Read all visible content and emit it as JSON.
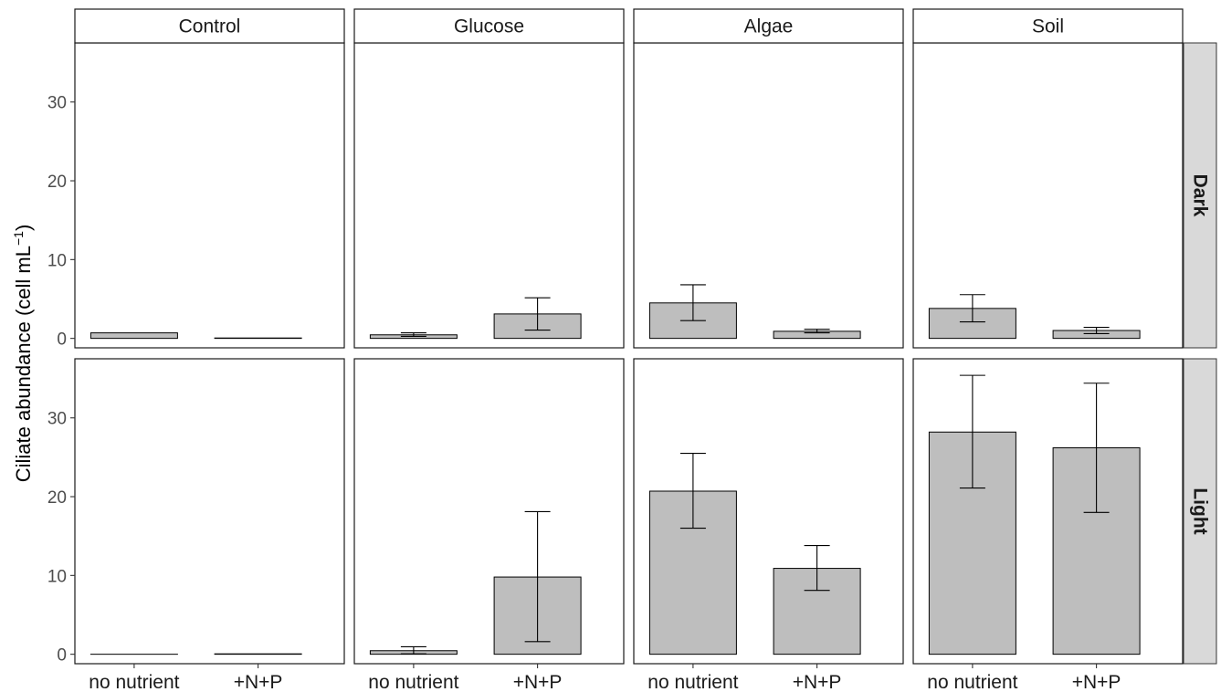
{
  "chart_data": {
    "type": "bar",
    "ylabel": "Ciliate abundance (cell mL",
    "ylabel_superscript": "−1",
    "ylabel_suffix": ")",
    "ylim": [
      -1.2,
      37.5
    ],
    "yticks": [
      0,
      10,
      20,
      30
    ],
    "categories": [
      "no nutrient",
      "+N+P"
    ],
    "facet_columns": [
      "Control",
      "Glucose",
      "Algae",
      "Soil"
    ],
    "facet_rows": [
      "Dark",
      "Light"
    ],
    "bar_color": "#bebebe",
    "panels": [
      {
        "row": "Dark",
        "col": "Control",
        "values": [
          0.7,
          0.05
        ],
        "err_low": [
          0.7,
          0.05
        ],
        "err_high": [
          0.7,
          0.05
        ]
      },
      {
        "row": "Dark",
        "col": "Glucose",
        "values": [
          0.45,
          3.1
        ],
        "err_low": [
          0.25,
          1.05
        ],
        "err_high": [
          0.7,
          5.15
        ]
      },
      {
        "row": "Dark",
        "col": "Algae",
        "values": [
          4.5,
          0.9
        ],
        "err_low": [
          2.25,
          0.7
        ],
        "err_high": [
          6.8,
          1.15
        ]
      },
      {
        "row": "Dark",
        "col": "Soil",
        "values": [
          3.8,
          1.0
        ],
        "err_low": [
          2.1,
          0.6
        ],
        "err_high": [
          5.55,
          1.4
        ]
      },
      {
        "row": "Light",
        "col": "Control",
        "values": [
          0.0,
          0.05
        ],
        "err_low": [
          0.0,
          0.05
        ],
        "err_high": [
          0.0,
          0.05
        ]
      },
      {
        "row": "Light",
        "col": "Glucose",
        "values": [
          0.45,
          9.8
        ],
        "err_low": [
          0.05,
          1.6
        ],
        "err_high": [
          0.95,
          18.1
        ]
      },
      {
        "row": "Light",
        "col": "Algae",
        "values": [
          20.7,
          10.9
        ],
        "err_low": [
          16.0,
          8.1
        ],
        "err_high": [
          25.5,
          13.8
        ]
      },
      {
        "row": "Light",
        "col": "Soil",
        "values": [
          28.2,
          26.2
        ],
        "err_low": [
          21.1,
          18.0
        ],
        "err_high": [
          35.4,
          34.4
        ]
      }
    ]
  }
}
